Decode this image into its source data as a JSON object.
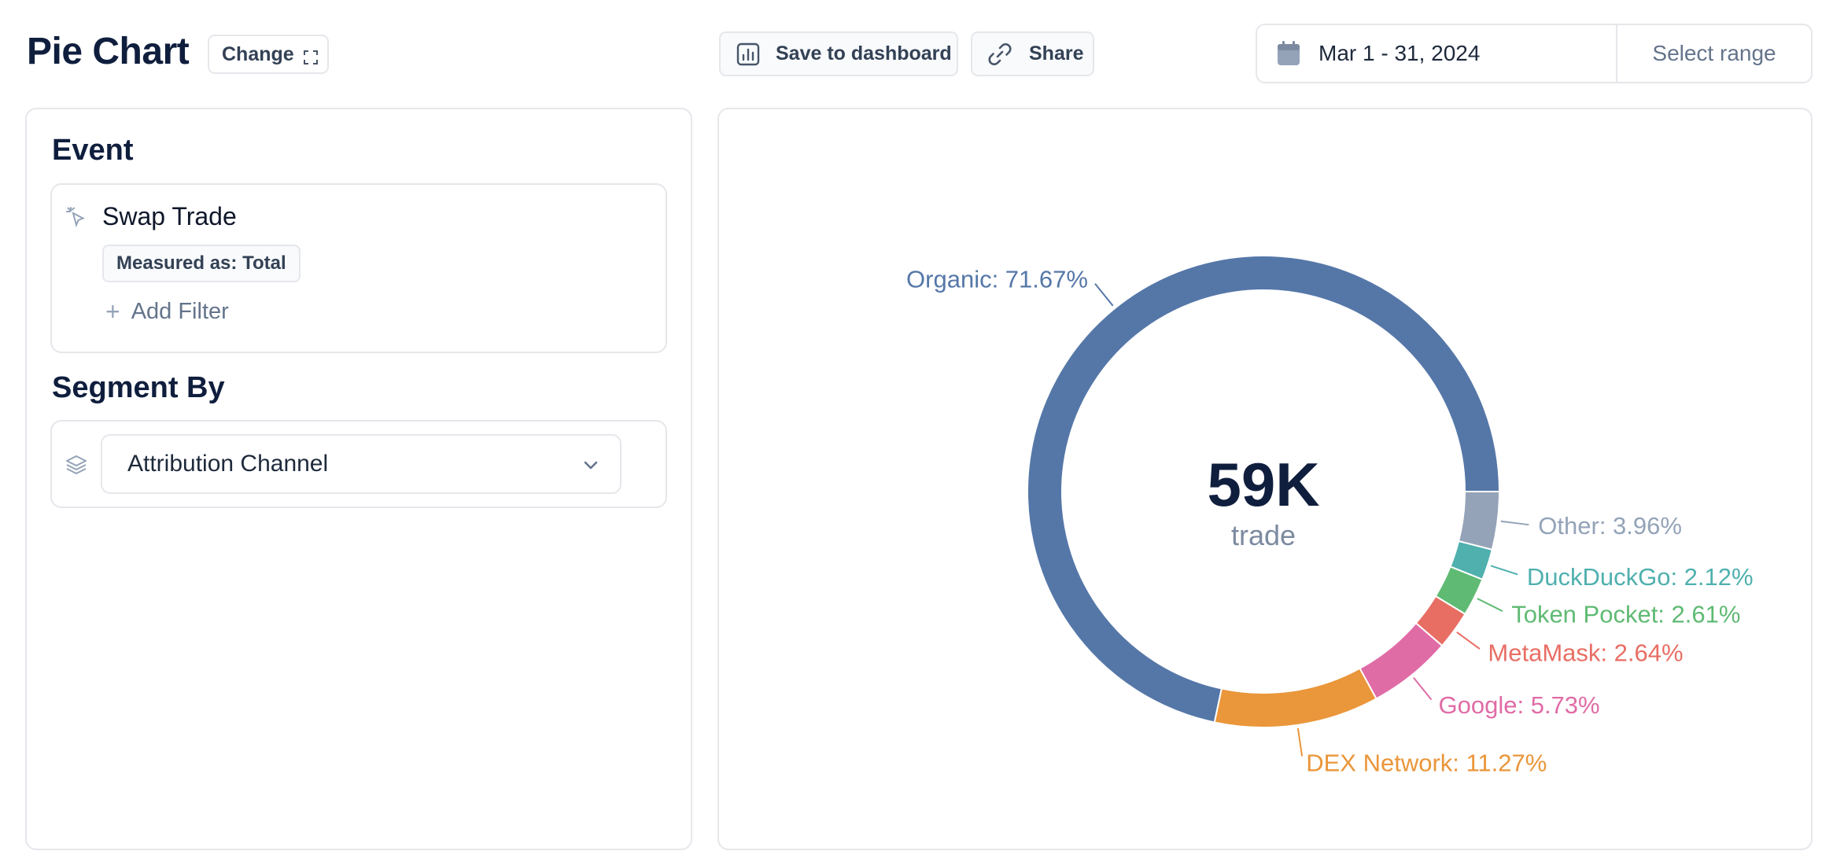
{
  "header": {
    "title": "Pie Chart",
    "change_label": "Change",
    "save_label": "Save to dashboard",
    "share_label": "Share",
    "date_range": "Mar 1 - 31, 2024",
    "select_range_label": "Select range"
  },
  "sidebar": {
    "event_title": "Event",
    "event_name": "Swap Trade",
    "measured_as": "Measured as: Total",
    "add_filter_label": "Add Filter",
    "segment_title": "Segment By",
    "segment_value": "Attribution Channel"
  },
  "icons": {
    "change": "expand-icon",
    "save": "bar-chart-icon",
    "share": "link-icon",
    "date": "calendar-icon",
    "event": "click-cursor-icon",
    "segment": "layers-icon",
    "dropdown": "chevron-down-icon"
  },
  "chart_data": {
    "type": "pie",
    "center_value": "59K",
    "center_label": "trade",
    "slices": [
      {
        "name": "Organic",
        "value": 71.67,
        "label": "Organic: 71.67%",
        "color": "#5577a8"
      },
      {
        "name": "Other",
        "value": 3.96,
        "label": "Other: 3.96%",
        "color": "#94a3b8"
      },
      {
        "name": "DuckDuckGo",
        "value": 2.12,
        "label": "DuckDuckGo: 2.12%",
        "color": "#4fb0ae"
      },
      {
        "name": "Token Pocket",
        "value": 2.61,
        "label": "Token Pocket: 2.61%",
        "color": "#5fba73"
      },
      {
        "name": "MetaMask",
        "value": 2.64,
        "label": "MetaMask: 2.64%",
        "color": "#e86e64"
      },
      {
        "name": "Google",
        "value": 5.73,
        "label": "Google: 5.73%",
        "color": "#e06ca6"
      },
      {
        "name": "DEX Network",
        "value": 11.27,
        "label": "DEX Network: 11.27%",
        "color": "#ea963a"
      }
    ]
  }
}
